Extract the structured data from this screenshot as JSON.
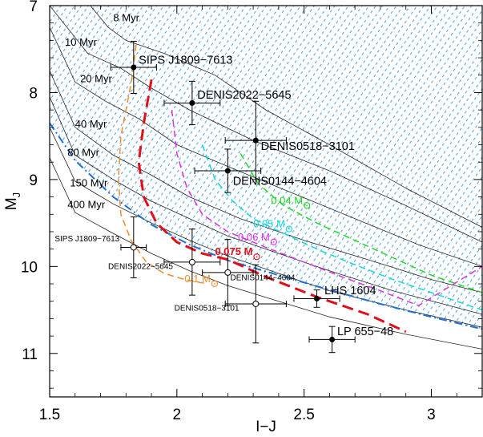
{
  "chart_data": {
    "type": "scatter",
    "xlabel": "I−J",
    "ylabel": "M",
    "ylabel_sub": "J",
    "xlim": [
      1.5,
      3.2
    ],
    "ylim": [
      11.5,
      7.0
    ],
    "y_inverted": true,
    "xticks": [
      1.5,
      2,
      2.5,
      3
    ],
    "xtick_labels": [
      "1.5",
      "2",
      "2.5",
      "3"
    ],
    "yticks": [
      7,
      8,
      9,
      10,
      11
    ],
    "ytick_labels": [
      "7",
      "8",
      "9",
      "10",
      "11"
    ],
    "shaded_region": {
      "description_hidden": true,
      "color": "#5fb0e8",
      "bottom_edge_x": [
        1.5,
        1.6,
        1.75,
        1.9,
        2.05,
        2.2,
        2.35,
        2.5,
        2.7,
        2.9,
        3.1,
        3.2
      ],
      "bottom_edge_y": [
        8.35,
        8.78,
        9.2,
        9.52,
        9.75,
        9.93,
        10.08,
        10.22,
        10.38,
        10.52,
        10.66,
        10.72
      ]
    },
    "isochrones": [
      {
        "label": "8 Myr",
        "x": [
          1.66,
          1.73,
          1.8,
          1.95,
          2.15,
          2.35,
          2.6,
          2.9,
          3.2
        ],
        "y": [
          7.0,
          7.25,
          7.4,
          7.55,
          7.8,
          8.2,
          8.6,
          9.1,
          9.55
        ]
      },
      {
        "label": "10 Myr",
        "x": [
          1.5,
          1.65,
          1.78,
          1.9,
          2.05,
          2.3,
          2.6,
          2.9,
          3.2
        ],
        "y": [
          7.0,
          7.55,
          7.72,
          7.95,
          8.2,
          8.55,
          8.9,
          9.3,
          9.72
        ]
      },
      {
        "label": "20 Myr",
        "x": [
          1.5,
          1.6,
          1.72,
          1.85,
          2.0,
          2.2,
          2.45,
          2.7,
          2.95,
          3.2
        ],
        "y": [
          7.25,
          7.88,
          8.1,
          8.3,
          8.6,
          8.85,
          9.15,
          9.45,
          9.75,
          10.0
        ]
      },
      {
        "label": "40 Myr",
        "x": [
          1.5,
          1.6,
          1.75,
          1.9,
          2.05,
          2.25,
          2.5,
          2.75,
          3.0,
          3.2
        ],
        "y": [
          7.75,
          8.4,
          8.72,
          8.95,
          9.2,
          9.45,
          9.7,
          9.92,
          10.15,
          10.3
        ]
      },
      {
        "label": "80 Myr",
        "x": [
          1.5,
          1.6,
          1.75,
          1.9,
          2.05,
          2.2,
          2.4,
          2.6,
          2.85,
          3.2
        ],
        "y": [
          8.05,
          8.72,
          9.0,
          9.25,
          9.45,
          9.65,
          9.85,
          10.05,
          10.28,
          10.55
        ]
      },
      {
        "label": "150 Myr",
        "x": [
          1.5,
          1.6,
          1.75,
          1.9,
          2.05,
          2.2,
          2.4,
          2.6,
          2.9,
          3.2
        ],
        "y": [
          8.4,
          9.02,
          9.28,
          9.5,
          9.7,
          9.88,
          10.08,
          10.28,
          10.5,
          10.7
        ]
      },
      {
        "label": "400 Myr",
        "x": [
          1.5,
          1.6,
          1.75,
          1.9,
          2.05,
          2.2,
          2.4,
          2.6,
          2.9,
          3.2
        ],
        "y": [
          8.75,
          9.38,
          9.62,
          9.85,
          10.05,
          10.22,
          10.4,
          10.58,
          10.78,
          10.95
        ]
      }
    ],
    "mass_tracks": [
      {
        "label_value": "0.1 M",
        "color": "#f08c28",
        "width": 1.5,
        "x": [
          1.84,
          1.82,
          1.78,
          1.77,
          1.78,
          1.82,
          1.88,
          1.95,
          2.03,
          2.12
        ],
        "y": [
          7.45,
          7.9,
          8.5,
          9.0,
          9.4,
          9.7,
          9.95,
          10.08,
          10.15,
          10.2
        ],
        "label_x": 2.03,
        "label_y": 10.18
      },
      {
        "label_value": "0.075 M",
        "color": "#e0101a",
        "width": 3.0,
        "x": [
          1.9,
          1.87,
          1.85,
          1.87,
          1.92,
          2.0,
          2.1,
          2.2,
          2.35,
          2.55,
          2.75,
          2.9
        ],
        "y": [
          7.85,
          8.35,
          8.8,
          9.2,
          9.5,
          9.72,
          9.85,
          9.92,
          10.12,
          10.35,
          10.55,
          10.75
        ],
        "label_x": 2.15,
        "label_y": 9.87
      },
      {
        "label_value": "0.06 M",
        "color": "#e030e0",
        "width": 1.5,
        "x": [
          1.98,
          2.0,
          2.04,
          2.1,
          2.2,
          2.35,
          2.5,
          2.65,
          2.8,
          2.95,
          3.2
        ],
        "y": [
          8.2,
          8.7,
          9.1,
          9.4,
          9.6,
          9.78,
          9.95,
          10.12,
          10.28,
          10.45,
          10.0
        ],
        "label_x": 2.24,
        "label_y": 9.7
      },
      {
        "label_value": "0.05 M",
        "color": "#10d8e0",
        "width": 1.5,
        "x": [
          2.1,
          2.15,
          2.22,
          2.3,
          2.42,
          2.55,
          2.7,
          2.85,
          3.0,
          3.2
        ],
        "y": [
          8.6,
          9.0,
          9.25,
          9.45,
          9.62,
          9.8,
          9.98,
          10.15,
          10.3,
          10.5
        ],
        "label_x": 2.3,
        "label_y": 9.55
      },
      {
        "label_value": "0.04 M",
        "color": "#20dc20",
        "width": 1.5,
        "x": [
          2.25,
          2.32,
          2.42,
          2.55,
          2.7,
          2.85,
          3.0,
          3.2
        ],
        "y": [
          8.7,
          9.05,
          9.3,
          9.5,
          9.7,
          9.9,
          10.1,
          10.3
        ],
        "label_x": 2.37,
        "label_y": 9.28
      }
    ],
    "blue_dashdot": {
      "color": "#1f6fd6",
      "x": [
        1.5,
        1.6,
        1.75,
        1.9,
        2.05,
        2.2,
        2.4,
        2.6,
        2.8,
        3.0,
        3.2
      ],
      "y": [
        8.35,
        8.78,
        9.2,
        9.52,
        9.75,
        9.93,
        10.1,
        10.27,
        10.43,
        10.58,
        10.72
      ]
    },
    "points": [
      {
        "label": "SIPS J1809−7613",
        "x": 1.83,
        "y": 7.71,
        "xerr": 0.09,
        "yerr": 0.3,
        "marker": "filled",
        "label_size": "big"
      },
      {
        "label": "DENIS2022−5645",
        "x": 2.06,
        "y": 8.12,
        "xerr": 0.11,
        "yerr": 0.25,
        "marker": "filled",
        "label_size": "big"
      },
      {
        "label": "DENIS0518−3101",
        "x": 2.31,
        "y": 8.55,
        "xerr": 0.12,
        "yerr": 0.45,
        "marker": "filled",
        "label_size": "big"
      },
      {
        "label": "DENIS0144−4604",
        "x": 2.2,
        "y": 8.9,
        "xerr": 0.13,
        "yerr": 0.25,
        "marker": "filled",
        "label_size": "big"
      },
      {
        "label": "LHS 1604",
        "x": 2.55,
        "y": 10.37,
        "xerr": 0.09,
        "yerr": 0.1,
        "marker": "filled",
        "label_size": "big"
      },
      {
        "label": "LP 655−48",
        "x": 2.61,
        "y": 10.84,
        "xerr": 0.09,
        "yerr": 0.15,
        "marker": "filled",
        "label_size": "big"
      },
      {
        "label": "SIPS J1809−7613",
        "x": 1.83,
        "y": 9.78,
        "xerr": 0.05,
        "yerr": 0.35,
        "marker": "open",
        "label_size": "small"
      },
      {
        "label": "DENIS2022−5645",
        "x": 2.06,
        "y": 9.95,
        "xerr": 0.11,
        "yerr": 0.38,
        "marker": "open",
        "label_size": "small"
      },
      {
        "label": "DENIS0144−4604",
        "x": 2.2,
        "y": 10.07,
        "xerr": 0.1,
        "yerr": 0.38,
        "marker": "open",
        "label_size": "small"
      },
      {
        "label": "DENIS0518−3101",
        "x": 2.31,
        "y": 10.43,
        "xerr": 0.12,
        "yerr": 0.45,
        "marker": "open",
        "label_size": "small"
      }
    ]
  }
}
